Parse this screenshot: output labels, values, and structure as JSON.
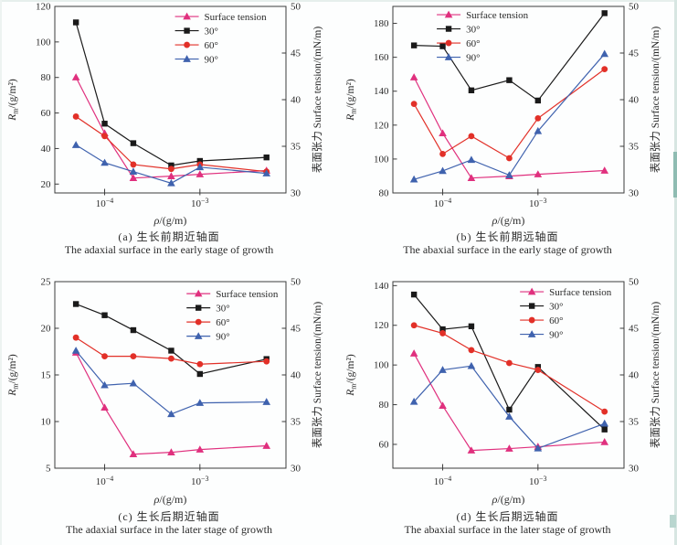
{
  "page": {
    "background": "#fdfefe",
    "edge_tint_top": "#e6efec",
    "edge_tint_left": "#edf3f1",
    "edge_tint_right": "#d7e6e2",
    "edge_accent": "#8fbcb2",
    "edge_mark": "#b9d6cf",
    "frame_color": "#3c3c3c"
  },
  "axes_shared": {
    "x_title": {
      "italic": "ρ",
      "rest": "/(g/m)"
    },
    "left_title": {
      "base": "R",
      "sub": "m",
      "rest": "/(g/m²)"
    },
    "right_title": "表面张力 Surface tension/(mN/m)",
    "xlim": [
      3e-05,
      0.008
    ],
    "x_ticks": [
      {
        "v": 0.0001,
        "base": "10",
        "exp": "−4"
      },
      {
        "v": 0.001,
        "base": "10",
        "exp": "−3"
      }
    ],
    "y2lim": [
      30,
      50
    ],
    "y2ticks": [
      "30",
      "35",
      "40",
      "45",
      "50"
    ],
    "legend": [
      {
        "label": "Surface tension",
        "color": "#e0307e",
        "marker": "triangle"
      },
      {
        "label": "30°",
        "color": "#1a1a1a",
        "marker": "square"
      },
      {
        "label": "60°",
        "color": "#e23028",
        "marker": "circle"
      },
      {
        "label": "90°",
        "color": "#3f62ae",
        "marker": "triangle"
      }
    ]
  },
  "chart_data": [
    {
      "id": "a",
      "type": "line",
      "caption_zh": "(a) 生长前期近轴面",
      "caption_en": "The adaxial surface in the early stage of growth",
      "x": [
        5e-05,
        0.0001,
        0.0002,
        0.0005,
        0.001,
        0.005
      ],
      "ylim": [
        15,
        120
      ],
      "yticks": [
        "20",
        "40",
        "60",
        "80",
        "100",
        "120"
      ],
      "legend_anchor": [
        0.52,
        0.02
      ],
      "series": [
        {
          "name": "Surface tension",
          "axis": "right",
          "values": [
            42.4,
            36.4,
            31.6,
            31.8,
            32.0,
            32.4
          ]
        },
        {
          "name": "30°",
          "axis": "left",
          "values": [
            111,
            54,
            43,
            30.5,
            33,
            35
          ]
        },
        {
          "name": "60°",
          "axis": "left",
          "values": [
            58,
            47,
            31,
            28.5,
            31,
            27
          ]
        },
        {
          "name": "90°",
          "axis": "left",
          "values": [
            42,
            32,
            27,
            20.5,
            29.5,
            26
          ]
        }
      ]
    },
    {
      "id": "b",
      "type": "line",
      "caption_zh": "(b) 生长前期远轴面",
      "caption_en": "The abaxial surface in the early stage of growth",
      "x": [
        5e-05,
        0.0001,
        0.0002,
        0.0005,
        0.001,
        0.005
      ],
      "ylim": [
        80,
        190
      ],
      "yticks": [
        "80",
        "100",
        "120",
        "140",
        "160",
        "180"
      ],
      "legend_anchor": [
        0.19,
        0.01
      ],
      "series": [
        {
          "name": "Surface tension",
          "axis": "right",
          "values": [
            42.4,
            36.4,
            31.6,
            31.8,
            32.0,
            32.4
          ]
        },
        {
          "name": "30°",
          "axis": "left",
          "values": [
            167,
            166.5,
            140.5,
            146.5,
            134.5,
            186
          ]
        },
        {
          "name": "60°",
          "axis": "left",
          "values": [
            132.5,
            103,
            113.5,
            100.5,
            124,
            153
          ]
        },
        {
          "name": "90°",
          "axis": "left",
          "values": [
            88,
            93,
            99.5,
            90.5,
            116.5,
            162
          ]
        }
      ]
    },
    {
      "id": "c",
      "type": "line",
      "caption_zh": "(c) 生长后期近轴面",
      "caption_en": "The adaxial surface in the later stage of growth",
      "x": [
        5e-05,
        0.0001,
        0.0002,
        0.0005,
        0.001,
        0.005
      ],
      "ylim": [
        5,
        25
      ],
      "yticks": [
        "5",
        "10",
        "15",
        "20",
        "25"
      ],
      "legend_anchor": [
        0.57,
        0.03
      ],
      "series": [
        {
          "name": "Surface tension",
          "axis": "right",
          "values": [
            42.4,
            36.5,
            31.5,
            31.7,
            32.0,
            32.4
          ]
        },
        {
          "name": "30°",
          "axis": "left",
          "values": [
            22.6,
            21.4,
            19.8,
            17.6,
            15.1,
            16.7
          ]
        },
        {
          "name": "60°",
          "axis": "left",
          "values": [
            19.0,
            17.0,
            17.0,
            16.75,
            16.15,
            16.45
          ]
        },
        {
          "name": "90°",
          "axis": "left",
          "values": [
            17.6,
            13.9,
            14.1,
            10.8,
            12.0,
            12.1
          ]
        }
      ]
    },
    {
      "id": "d",
      "type": "line",
      "caption_zh": "(d) 生长后期远轴面",
      "caption_en": "The abaxial surface in the later stage of growth",
      "x": [
        5e-05,
        0.0001,
        0.0002,
        0.0005,
        0.001,
        0.005
      ],
      "ylim": [
        48,
        142
      ],
      "yticks": [
        "60",
        "80",
        "100",
        "120",
        "140"
      ],
      "legend_anchor": [
        0.55,
        0.02
      ],
      "series": [
        {
          "name": "Surface tension",
          "axis": "right",
          "values": [
            42.3,
            36.7,
            31.9,
            32.1,
            32.3,
            32.8
          ]
        },
        {
          "name": "30°",
          "axis": "left",
          "values": [
            135.5,
            118,
            119.5,
            77.5,
            99,
            67.5
          ]
        },
        {
          "name": "60°",
          "axis": "left",
          "values": [
            120,
            116,
            107.5,
            101,
            97.5,
            76.5
          ]
        },
        {
          "name": "90°",
          "axis": "left",
          "values": [
            81.5,
            97.5,
            99.5,
            74,
            58,
            70.5
          ]
        }
      ]
    }
  ]
}
